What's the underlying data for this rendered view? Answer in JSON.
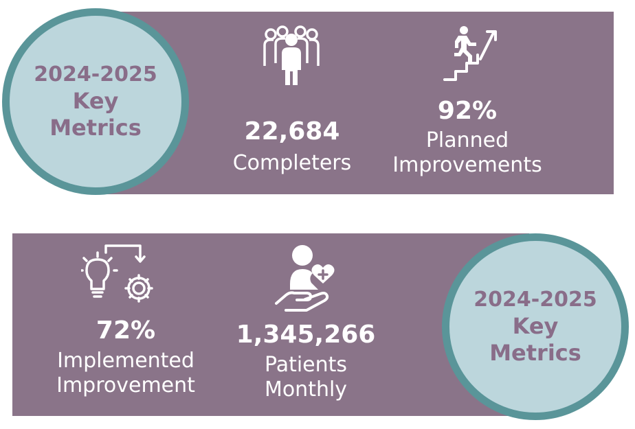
{
  "top_badge": {
    "line1": "2024-2025",
    "line2": "Key",
    "line3": "Metrics"
  },
  "bottom_badge": {
    "line1": "2024-2025",
    "line2": "Key",
    "line3": "Metrics"
  },
  "metrics": [
    {
      "icon": "group-of-people-icon",
      "value": "22,684",
      "label_lines": [
        "Completers"
      ]
    },
    {
      "icon": "person-climbing-stairs-icon",
      "value": "92%",
      "label_lines": [
        "Planned",
        "Improvements"
      ]
    },
    {
      "icon": "lightbulb-gear-icon",
      "value": "72%",
      "label_lines": [
        "Implemented",
        "Improvement"
      ]
    },
    {
      "icon": "hand-holding-heart-person-icon",
      "value": "1,345,266",
      "label_lines": [
        "Patients",
        "Monthly"
      ]
    }
  ],
  "colors": {
    "band": "#8a7489",
    "circle_fill": "#bcd6dc",
    "circle_ring": "#5a9599",
    "badge_text": "#896d89",
    "metric_text": "#ffffff"
  }
}
